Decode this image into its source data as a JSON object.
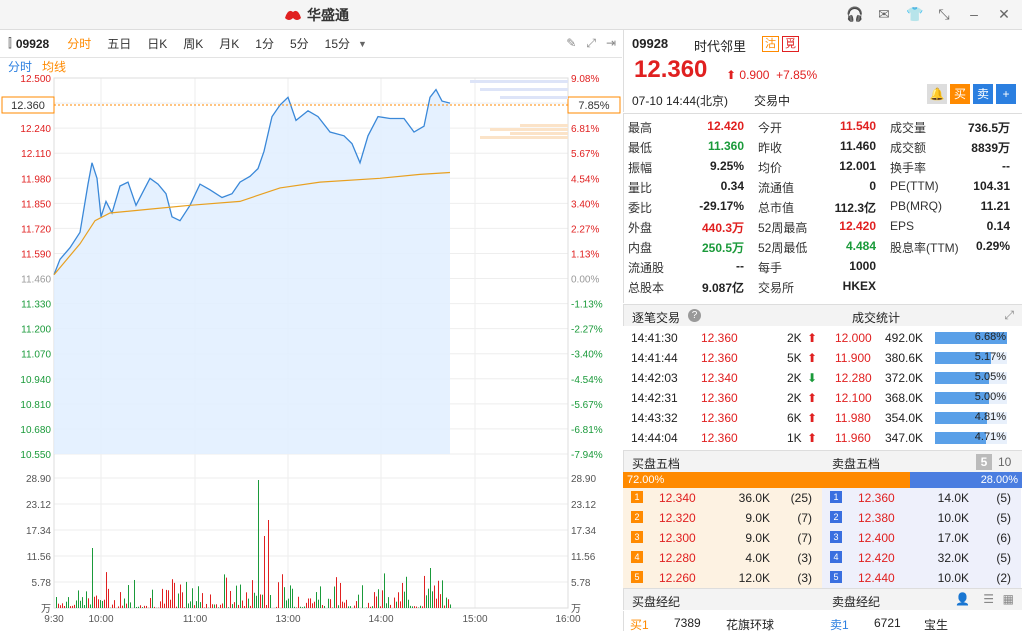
{
  "window": {
    "app_name": "华盛通"
  },
  "toolbar": {
    "code": "09928",
    "periods": [
      "分时",
      "五日",
      "日K",
      "周K",
      "月K",
      "1分",
      "5分",
      "15分"
    ],
    "active_period": "分时"
  },
  "subtabs": {
    "time": "分时",
    "avg": "均线"
  },
  "chart_data": {
    "type": "line",
    "price_axis": [
      "12.500",
      "12.360",
      "12.240",
      "12.110",
      "11.980",
      "11.850",
      "11.720",
      "11.590",
      "11.460",
      "11.330",
      "11.200",
      "11.070",
      "10.940",
      "10.810",
      "10.680",
      "10.550"
    ],
    "pct_axis": [
      "9.08%",
      "7.85%",
      "6.81%",
      "5.67%",
      "4.54%",
      "3.40%",
      "2.27%",
      "1.13%",
      "0.00%",
      "-1.13%",
      "-2.27%",
      "-3.40%",
      "-4.54%",
      "-5.67%",
      "-6.81%",
      "-7.94%"
    ],
    "vol_axis": [
      "28.90",
      "23.12",
      "17.34",
      "11.56",
      "5.78",
      "万"
    ],
    "time_axis": [
      "9:30",
      "10:00",
      "11:00",
      "13:00",
      "14:00",
      "15:00",
      "16:00"
    ],
    "current_price": "12.360",
    "current_pct": "7.85%",
    "prev_close": 11.46,
    "ylim": [
      10.55,
      12.5
    ]
  },
  "quote": {
    "code": "09928",
    "name": "时代邻里",
    "tag1": "沽",
    "tag2": "覓",
    "price": "12.360",
    "change": "0.900",
    "change_pct": "+7.85%",
    "time": "07-10 14:44(北京)",
    "status": "交易中",
    "buttons": [
      "买",
      "卖",
      "+"
    ]
  },
  "stats": [
    [
      [
        "最高",
        "12.420",
        "red"
      ],
      [
        "今开",
        "11.540",
        "red"
      ],
      [
        "成交量",
        "736.5万",
        ""
      ]
    ],
    [
      [
        "最低",
        "11.360",
        "green"
      ],
      [
        "昨收",
        "11.460",
        ""
      ],
      [
        "成交额",
        "8839万",
        ""
      ]
    ],
    [
      [
        "振幅",
        "9.25%",
        ""
      ],
      [
        "均价",
        "12.001",
        ""
      ],
      [
        "换手率",
        "--",
        ""
      ]
    ],
    [
      [
        "量比",
        "0.34",
        ""
      ],
      [
        "流通值",
        "0",
        ""
      ],
      [
        "PE(TTM)",
        "104.31",
        ""
      ]
    ],
    [
      [
        "委比",
        "-29.17%",
        ""
      ],
      [
        "总市值",
        "112.3亿",
        ""
      ],
      [
        "PB(MRQ)",
        "11.21",
        ""
      ]
    ],
    [
      [
        "外盘",
        "440.3万",
        "red"
      ],
      [
        "52周最高",
        "12.420",
        "red"
      ],
      [
        "EPS",
        "0.14",
        ""
      ]
    ],
    [
      [
        "内盘",
        "250.5万",
        "green"
      ],
      [
        "52周最低",
        "4.484",
        "green"
      ],
      [
        "股息率(TTM)",
        "0.29%",
        ""
      ]
    ],
    [
      [
        "流通股",
        "--",
        ""
      ],
      [
        "每手",
        "1000",
        ""
      ],
      [
        "",
        "",
        " "
      ]
    ],
    [
      [
        "总股本",
        "9.087亿",
        ""
      ],
      [
        "交易所",
        "HKEX",
        ""
      ],
      [
        "",
        "",
        " "
      ]
    ]
  ],
  "ticks_header": {
    "left": "逐笔交易",
    "right": "成交统计"
  },
  "ticks": [
    [
      "14:41:30",
      "12.360",
      "2K",
      "up"
    ],
    [
      "14:41:44",
      "12.360",
      "5K",
      "up"
    ],
    [
      "14:42:03",
      "12.340",
      "2K",
      "down"
    ],
    [
      "14:42:31",
      "12.360",
      "2K",
      "up"
    ],
    [
      "14:43:32",
      "12.360",
      "6K",
      "up"
    ],
    [
      "14:44:04",
      "12.360",
      "1K",
      "up"
    ]
  ],
  "deal_stats": [
    [
      "12.000",
      "492.0K",
      "6.68%",
      6.68
    ],
    [
      "11.900",
      "380.6K",
      "5.17%",
      5.17
    ],
    [
      "12.280",
      "372.0K",
      "5.05%",
      5.05
    ],
    [
      "12.100",
      "368.0K",
      "5.00%",
      5.0
    ],
    [
      "11.980",
      "354.0K",
      "4.81%",
      4.81
    ],
    [
      "11.960",
      "347.0K",
      "4.71%",
      4.71
    ]
  ],
  "orderbook_header": {
    "buy": "买盘五档",
    "sell": "卖盘五档",
    "n5": "5",
    "n10": "10"
  },
  "orderbook_ratio": {
    "buy": "72.00%",
    "sell": "28.00%",
    "buy_frac": 0.72
  },
  "bids": [
    [
      "1",
      "12.340",
      "36.0K",
      "(25)"
    ],
    [
      "2",
      "12.320",
      "9.0K",
      "(7)"
    ],
    [
      "3",
      "12.300",
      "9.0K",
      "(7)"
    ],
    [
      "4",
      "12.280",
      "4.0K",
      "(3)"
    ],
    [
      "5",
      "12.260",
      "12.0K",
      "(3)"
    ]
  ],
  "asks": [
    [
      "1",
      "12.360",
      "14.0K",
      "(5)"
    ],
    [
      "2",
      "12.380",
      "10.0K",
      "(5)"
    ],
    [
      "3",
      "12.400",
      "17.0K",
      "(6)"
    ],
    [
      "4",
      "12.420",
      "32.0K",
      "(5)"
    ],
    [
      "5",
      "12.440",
      "10.0K",
      "(2)"
    ]
  ],
  "brokers_header": {
    "buy": "买盘经纪",
    "sell": "卖盘经纪"
  },
  "brokers": {
    "buy": [
      "买1",
      "7389",
      "花旗环球"
    ],
    "sell": [
      "卖1",
      "6721",
      "宝生"
    ]
  },
  "colors": {
    "up": "#e02020",
    "down": "#1a9a3a",
    "accent": "#ff8a00",
    "blue": "#2b7fe0"
  }
}
